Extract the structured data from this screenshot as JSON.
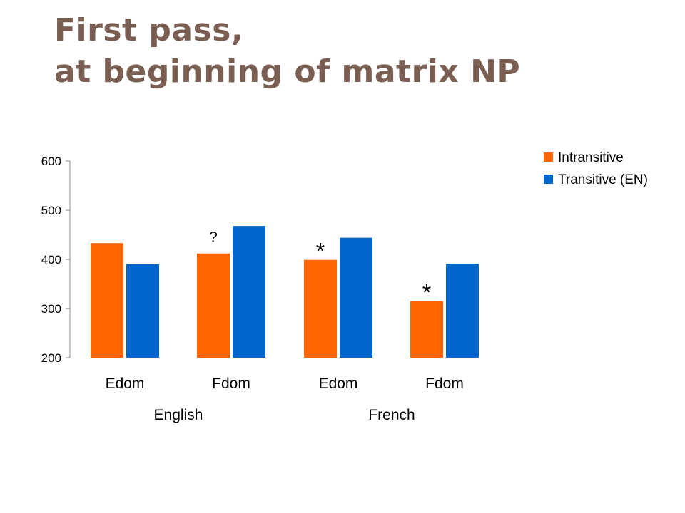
{
  "slide": {
    "title_line1": "First pass,",
    "title_line2": "at beginning of matrix NP"
  },
  "chart_data": {
    "type": "bar",
    "categories": [
      "Edom",
      "Fdom",
      "Edom",
      "Fdom"
    ],
    "groups": [
      "English",
      "French"
    ],
    "series": [
      {
        "name": "Intransitive",
        "color": "#ff6600",
        "values": [
          433,
          412,
          399,
          315
        ]
      },
      {
        "name": "Transitive (EN)",
        "color": "#0066cc",
        "values": [
          390,
          468,
          444,
          391
        ]
      }
    ],
    "annotations": [
      "",
      "?",
      "*",
      "*"
    ],
    "ylim": [
      200,
      600
    ],
    "yticks": [
      200,
      300,
      400,
      500,
      600
    ],
    "legend_position": "top-right",
    "grid": false
  }
}
